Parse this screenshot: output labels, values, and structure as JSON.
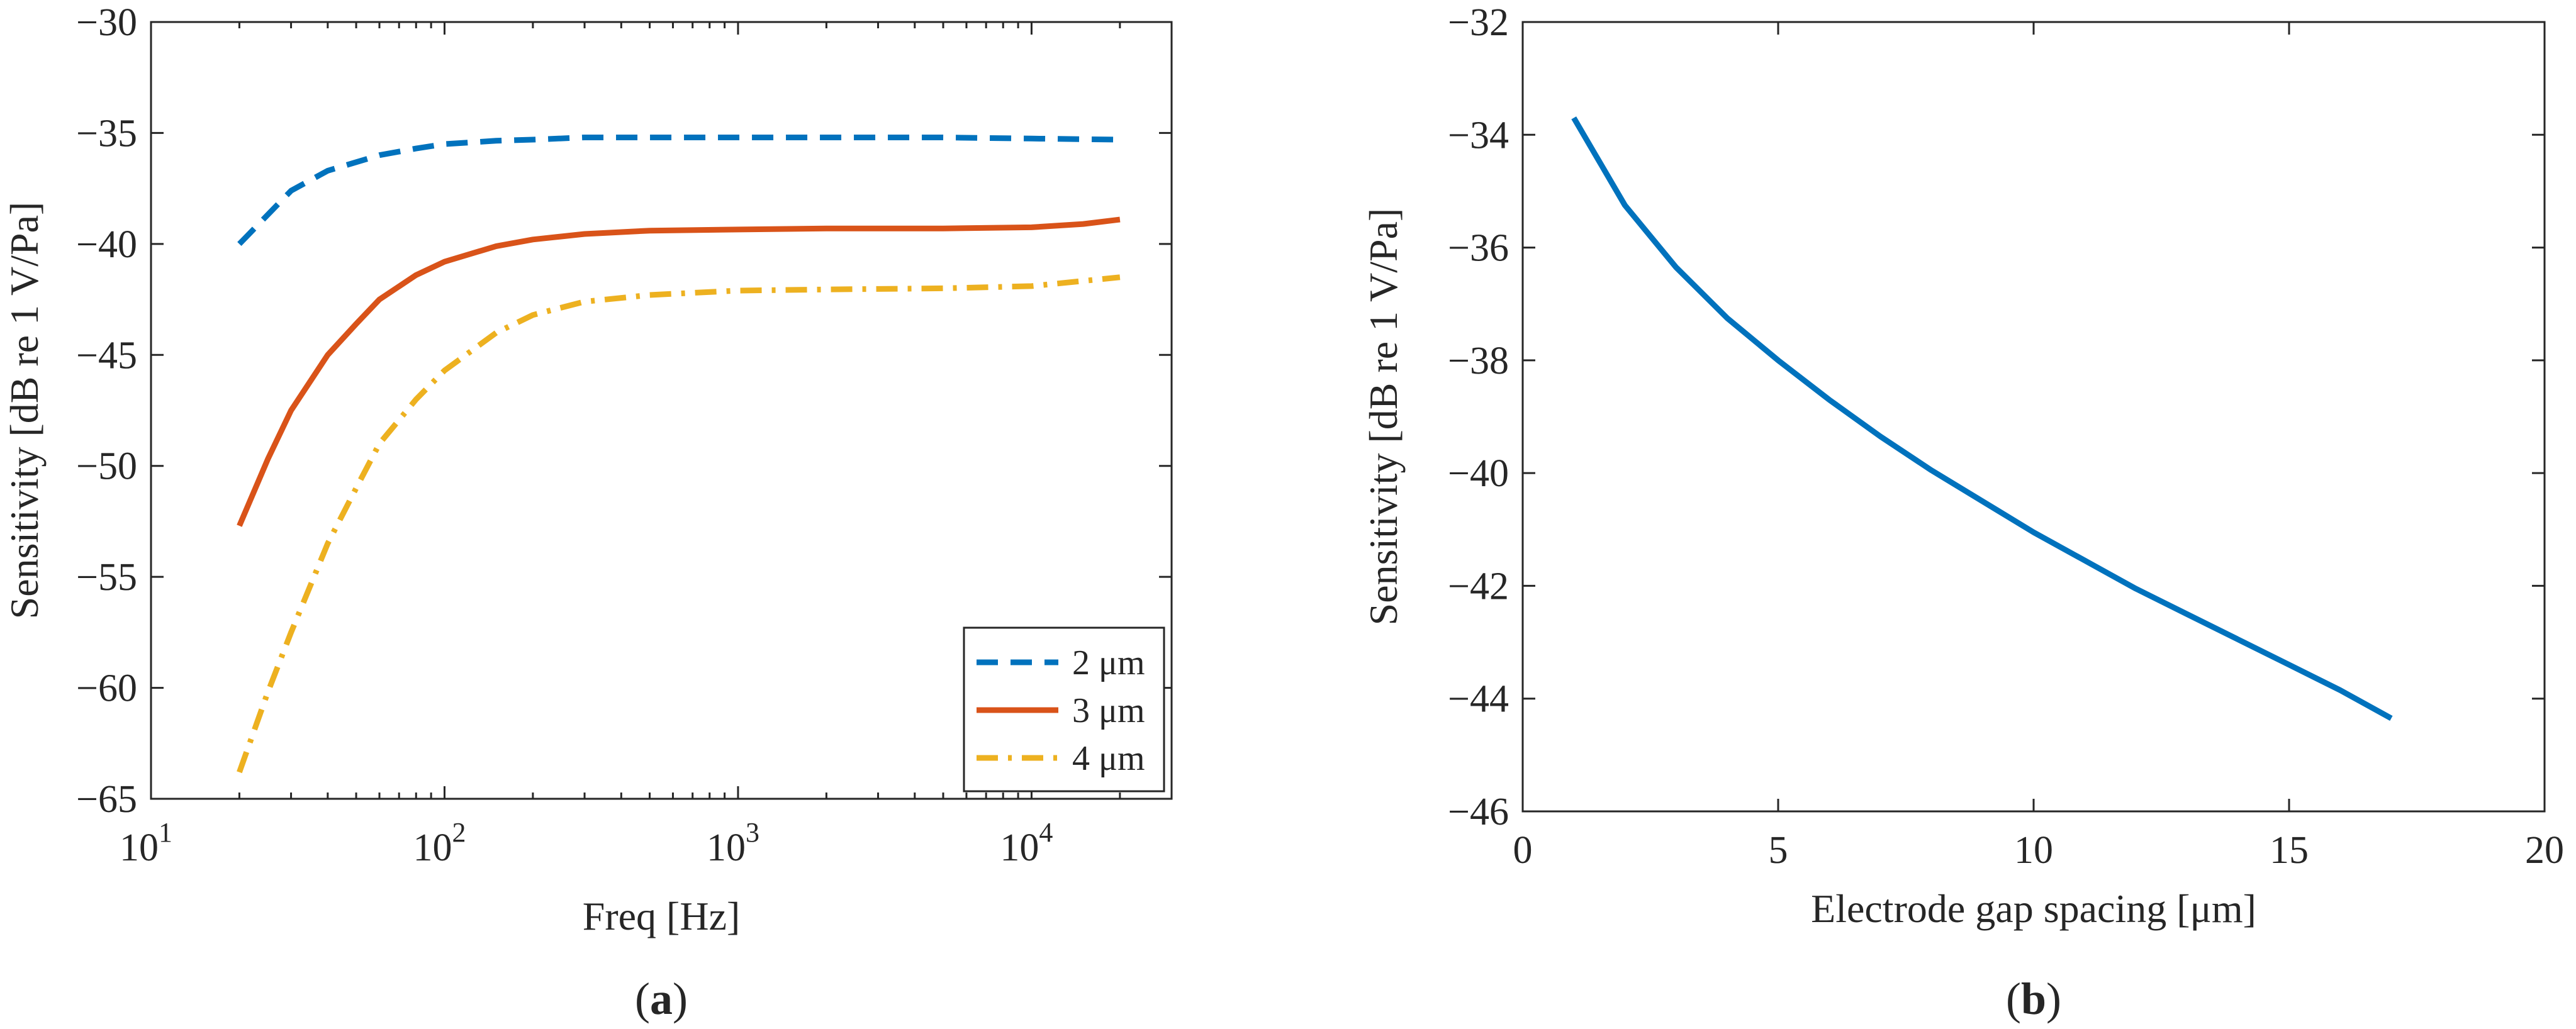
{
  "chart_data": [
    {
      "type": "line",
      "panel": "a",
      "caption": "a",
      "xlabel": "Freq [Hz]",
      "ylabel": "Sensitivity [dB re 1 V/Pa]",
      "xscale": "log",
      "xlim": [
        10,
        30000
      ],
      "ylim": [
        -65,
        -30
      ],
      "xticks": [
        {
          "value": 10,
          "base": "10",
          "exp": "1"
        },
        {
          "value": 100,
          "base": "10",
          "exp": "2"
        },
        {
          "value": 1000,
          "base": "10",
          "exp": "3"
        },
        {
          "value": 10000,
          "base": "10",
          "exp": "4"
        }
      ],
      "yticks": [
        "-65",
        "-60",
        "-55",
        "-50",
        "-45",
        "-40",
        "-35",
        "-30"
      ],
      "legend_position": "bottom-right",
      "series": [
        {
          "name": "2 μm",
          "color": "#0072BD",
          "style": "dashed",
          "x": [
            20,
            30,
            40,
            60,
            80,
            100,
            150,
            200,
            300,
            500,
            1000,
            2000,
            5000,
            10000,
            20000
          ],
          "y": [
            -40.0,
            -37.6,
            -36.7,
            -36.0,
            -35.7,
            -35.5,
            -35.35,
            -35.3,
            -35.2,
            -35.2,
            -35.2,
            -35.2,
            -35.2,
            -35.25,
            -35.3
          ]
        },
        {
          "name": "3 μm",
          "color": "#D95319",
          "style": "solid",
          "x": [
            20,
            25,
            30,
            40,
            50,
            60,
            80,
            100,
            150,
            200,
            300,
            500,
            1000,
            2000,
            5000,
            10000,
            15000,
            20000
          ],
          "y": [
            -52.7,
            -49.7,
            -47.5,
            -45.0,
            -43.6,
            -42.5,
            -41.4,
            -40.8,
            -40.1,
            -39.8,
            -39.55,
            -39.4,
            -39.35,
            -39.3,
            -39.3,
            -39.25,
            -39.1,
            -38.9
          ]
        },
        {
          "name": "4 μm",
          "color": "#EDB120",
          "style": "dashdot",
          "x": [
            20,
            25,
            30,
            40,
            50,
            60,
            80,
            100,
            150,
            200,
            300,
            500,
            1000,
            2000,
            5000,
            10000,
            20000
          ],
          "y": [
            -63.8,
            -60.2,
            -57.5,
            -53.5,
            -51.0,
            -49.0,
            -47.0,
            -45.7,
            -44.0,
            -43.2,
            -42.6,
            -42.3,
            -42.1,
            -42.05,
            -42.0,
            -41.9,
            -41.5
          ]
        }
      ]
    },
    {
      "type": "line",
      "panel": "b",
      "caption": "b",
      "xlabel": "Electrode gap spacing [μm]",
      "ylabel": "Sensitivity [dB re 1 V/Pa]",
      "xlim": [
        0,
        20
      ],
      "ylim": [
        -46,
        -32
      ],
      "xticks": [
        "0",
        "5",
        "10",
        "15",
        "20"
      ],
      "yticks": [
        "-46",
        "-44",
        "-42",
        "-40",
        "-38",
        "-36",
        "-34",
        "-32"
      ],
      "series": [
        {
          "name": "Sensitivity",
          "color": "#0072BD",
          "style": "solid",
          "x": [
            1,
            2,
            3,
            4,
            5,
            6,
            7,
            8,
            9,
            10,
            11,
            12,
            13,
            14,
            15,
            16,
            17
          ],
          "y": [
            -33.7,
            -35.25,
            -36.35,
            -37.25,
            -38.0,
            -38.7,
            -39.35,
            -39.95,
            -40.5,
            -41.05,
            -41.55,
            -42.05,
            -42.5,
            -42.95,
            -43.4,
            -43.85,
            -44.35
          ]
        }
      ]
    }
  ]
}
